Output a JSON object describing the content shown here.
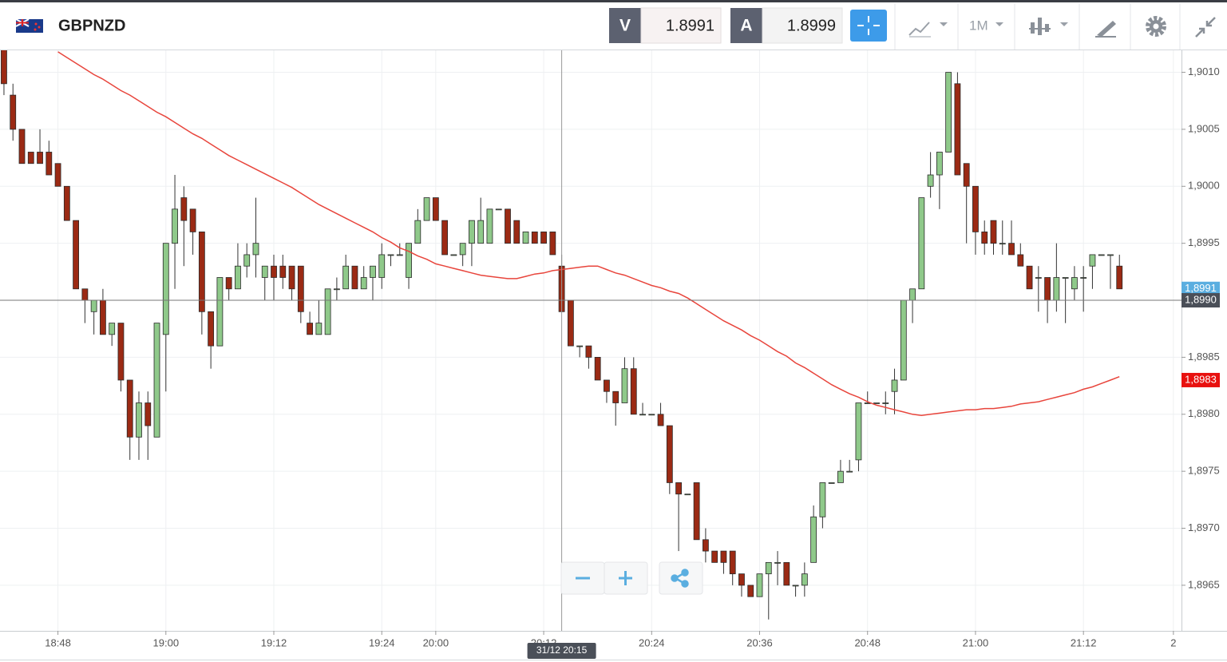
{
  "toolbar": {
    "symbol": "GBPNZD",
    "bid_label": "V",
    "bid": 1.8991,
    "ask_label": "A",
    "ask": 1.8999,
    "timeframe": "1M"
  },
  "chart_data": {
    "type": "candlestick",
    "xlim": [
      -0.44,
      130.9
    ],
    "xticks": [
      {
        "value": 6,
        "label": "18:48"
      },
      {
        "value": 18,
        "label": "19:00"
      },
      {
        "value": 30,
        "label": "19:12"
      },
      {
        "value": 42,
        "label": "19:24"
      },
      {
        "value": 48,
        "label": "20:00"
      },
      {
        "value": 60,
        "label": "20:12"
      },
      {
        "value": 72,
        "label": "20:24"
      },
      {
        "value": 84,
        "label": "20:36"
      },
      {
        "value": 96,
        "label": "20:48"
      },
      {
        "value": 108,
        "label": "21:00"
      },
      {
        "value": 120,
        "label": "21:12"
      },
      {
        "value": 130,
        "label": "2"
      }
    ],
    "ylim": [
      1.8961,
      1.9012
    ],
    "yticks": [
      {
        "value": 1.8965,
        "label": "1,8965"
      },
      {
        "value": 1.897,
        "label": "1,8970"
      },
      {
        "value": 1.8975,
        "label": "1,8975"
      },
      {
        "value": 1.898,
        "label": "1,8980"
      },
      {
        "value": 1.8985,
        "label": "1,8985"
      },
      {
        "value": 1.899,
        "label": "1,8990"
      },
      {
        "value": 1.8995,
        "label": "1,8995"
      },
      {
        "value": 1.9,
        "label": "1,9000"
      },
      {
        "value": 1.9005,
        "label": "1,9005"
      },
      {
        "value": 1.901,
        "label": "1,9010"
      }
    ],
    "grid": true,
    "up_color": "#8fc98a",
    "down_color": "#9b2a14",
    "open": [
      1.9012,
      1.9008,
      1.9005,
      1.9003,
      1.9003,
      1.9003,
      1.9002,
      1.9,
      1.8997,
      1.8991,
      1.8989,
      1.899,
      1.8987,
      1.8988,
      1.8983,
      1.8978,
      1.8981,
      1.8978,
      1.8987,
      1.8995,
      1.8999,
      1.8998,
      1.8996,
      1.8989,
      1.8986,
      1.8992,
      1.8991,
      1.8993,
      1.8994,
      1.8992,
      1.8993,
      1.8993,
      1.8993,
      1.8993,
      1.8988,
      1.8987,
      1.8987,
      1.8991,
      1.8991,
      1.8993,
      1.8991,
      1.8992,
      1.8992,
      1.8994,
      1.8994,
      1.8992,
      1.8995,
      1.8997,
      1.8999,
      1.8997,
      1.8994,
      1.8994,
      1.8995,
      1.8995,
      1.8995,
      1.8998,
      1.8998,
      1.8997,
      1.8995,
      1.8996,
      1.8996,
      1.8996,
      1.8993,
      1.899,
      1.8986,
      1.8986,
      1.8985,
      1.8983,
      1.8982,
      1.8981,
      1.8984,
      1.898,
      1.898,
      1.898,
      1.8979,
      1.8974,
      1.8973,
      1.8974,
      1.8969,
      1.8968,
      1.8968,
      1.8968,
      1.8966,
      1.8965,
      1.8964,
      1.8966,
      1.8967,
      1.8967,
      1.8965,
      1.8965,
      1.8967,
      1.8971,
      1.8974,
      1.8974,
      1.8975,
      1.8976,
      1.8981,
      1.8981,
      1.8981,
      1.8982,
      1.8983,
      1.899,
      1.8991,
      1.9,
      1.9001,
      1.9003,
      1.9009,
      1.9002,
      1.9,
      1.8996,
      1.8997,
      1.8995,
      1.8995,
      1.8994,
      1.8993,
      1.8992,
      1.8992,
      1.899,
      1.8992,
      1.8991,
      1.8992,
      1.8993,
      1.8994,
      1.8994,
      1.8993
    ],
    "high": [
      1.9012,
      1.9009,
      1.9005,
      1.9003,
      1.9005,
      1.9004,
      1.9002,
      1.9,
      1.8997,
      1.8991,
      1.899,
      1.8991,
      1.8988,
      1.8988,
      1.8983,
      1.8982,
      1.8982,
      1.8988,
      1.8995,
      1.9001,
      1.9,
      1.8998,
      1.8996,
      1.8989,
      1.8992,
      1.8992,
      1.8995,
      1.8995,
      1.8999,
      1.8993,
      1.8994,
      1.8994,
      1.8993,
      1.8993,
      1.8989,
      1.899,
      1.8991,
      1.8992,
      1.8994,
      1.8993,
      1.8993,
      1.8993,
      1.8995,
      1.8994,
      1.8995,
      1.8995,
      1.8998,
      1.8999,
      1.8999,
      1.8997,
      1.8994,
      1.8995,
      1.8997,
      1.8999,
      1.8998,
      1.8998,
      1.8998,
      1.8997,
      1.8996,
      1.8996,
      1.8996,
      1.8996,
      1.8994,
      1.899,
      1.8986,
      1.8986,
      1.8985,
      1.8983,
      1.8982,
      1.8985,
      1.8985,
      1.8981,
      1.898,
      1.8981,
      1.8979,
      1.8974,
      1.8973,
      1.8974,
      1.897,
      1.8968,
      1.8968,
      1.8968,
      1.8966,
      1.8965,
      1.8966,
      1.8967,
      1.8968,
      1.8967,
      1.8965,
      1.8967,
      1.8972,
      1.8974,
      1.8974,
      1.8976,
      1.8976,
      1.8981,
      1.8982,
      1.8981,
      1.8982,
      1.8984,
      1.899,
      1.8991,
      1.8999,
      1.9003,
      1.9003,
      1.901,
      1.901,
      1.9002,
      1.9,
      1.8997,
      1.8997,
      1.8997,
      1.8997,
      1.8995,
      1.8993,
      1.8993,
      1.8992,
      1.8995,
      1.8992,
      1.8993,
      1.8993,
      1.8994,
      1.8994,
      1.8994,
      1.8994
    ],
    "low": [
      1.9008,
      1.9004,
      1.9002,
      1.9002,
      1.9002,
      1.9001,
      1.9,
      1.8997,
      1.8991,
      1.8988,
      1.8987,
      1.8987,
      1.8986,
      1.8982,
      1.8976,
      1.8976,
      1.8976,
      1.8978,
      1.8982,
      1.8991,
      1.8993,
      1.8994,
      1.8987,
      1.8984,
      1.8986,
      1.899,
      1.8991,
      1.8992,
      1.8992,
      1.899,
      1.899,
      1.8991,
      1.899,
      1.8988,
      1.8987,
      1.8987,
      1.8987,
      1.899,
      1.8991,
      1.8991,
      1.8991,
      1.899,
      1.8991,
      1.8993,
      1.8994,
      1.8991,
      1.8995,
      1.8997,
      1.8997,
      1.8994,
      1.8994,
      1.8993,
      1.8993,
      1.8995,
      1.8995,
      1.8998,
      1.8995,
      1.8995,
      1.8995,
      1.8995,
      1.8995,
      1.8994,
      1.8989,
      1.8986,
      1.8985,
      1.8984,
      1.8983,
      1.8981,
      1.8979,
      1.8981,
      1.898,
      1.898,
      1.898,
      1.8979,
      1.8973,
      1.8968,
      1.8973,
      1.8969,
      1.8967,
      1.8967,
      1.8966,
      1.8965,
      1.8964,
      1.8964,
      1.8964,
      1.8962,
      1.8965,
      1.8965,
      1.8964,
      1.8964,
      1.8967,
      1.897,
      1.8974,
      1.8974,
      1.8975,
      1.8975,
      1.8981,
      1.8981,
      1.898,
      1.898,
      1.8983,
      1.8988,
      1.8991,
      1.8999,
      1.8998,
      1.9003,
      1.9001,
      1.8995,
      1.8994,
      1.8994,
      1.8994,
      1.8994,
      1.8994,
      1.8993,
      1.8991,
      1.8989,
      1.8988,
      1.8989,
      1.8988,
      1.899,
      1.8989,
      1.8991,
      1.8994,
      1.8991,
      1.8991
    ],
    "close": [
      1.9009,
      1.9005,
      1.9002,
      1.9002,
      1.9002,
      1.9001,
      1.9,
      1.8997,
      1.8991,
      1.899,
      1.899,
      1.8987,
      1.8988,
      1.8983,
      1.8978,
      1.8981,
      1.8979,
      1.8988,
      1.8995,
      1.8998,
      1.8997,
      1.8996,
      1.8989,
      1.8986,
      1.8992,
      1.8991,
      1.8993,
      1.8994,
      1.8995,
      1.8993,
      1.8992,
      1.8992,
      1.8991,
      1.8989,
      1.8987,
      1.8988,
      1.8991,
      1.8991,
      1.8993,
      1.8991,
      1.8992,
      1.8993,
      1.8994,
      1.8994,
      1.8994,
      1.8995,
      1.8997,
      1.8999,
      1.8997,
      1.8994,
      1.8994,
      1.8995,
      1.8997,
      1.8997,
      1.8998,
      1.8998,
      1.8995,
      1.8995,
      1.8996,
      1.8995,
      1.8995,
      1.8994,
      1.8989,
      1.8986,
      1.8986,
      1.8985,
      1.8983,
      1.8982,
      1.8981,
      1.8984,
      1.898,
      1.898,
      1.898,
      1.8979,
      1.8974,
      1.8973,
      1.8973,
      1.8969,
      1.8968,
      1.8967,
      1.8967,
      1.8966,
      1.8965,
      1.8964,
      1.8966,
      1.8967,
      1.8967,
      1.8965,
      1.8965,
      1.8966,
      1.8971,
      1.8974,
      1.8974,
      1.8975,
      1.8975,
      1.8981,
      1.8981,
      1.8981,
      1.8981,
      1.8983,
      1.899,
      1.8991,
      1.8999,
      1.9001,
      1.9003,
      1.901,
      1.9001,
      1.9,
      1.8996,
      1.8995,
      1.8995,
      1.8995,
      1.8994,
      1.8993,
      1.8991,
      1.8992,
      1.899,
      1.8992,
      1.8992,
      1.8992,
      1.8992,
      1.8994,
      1.8994,
      1.8994,
      1.8991
    ],
    "overlay": {
      "color": "#e8453c",
      "values": [
        null,
        null,
        null,
        null,
        null,
        null,
        1.90118,
        1.90113,
        1.90108,
        1.90103,
        1.90098,
        1.90094,
        1.90089,
        1.90084,
        1.9008,
        1.90075,
        1.9007,
        1.90065,
        1.90061,
        1.90056,
        1.90051,
        1.90046,
        1.90042,
        1.90037,
        1.90032,
        1.90027,
        1.90023,
        1.90019,
        1.90015,
        1.90011,
        1.90007,
        1.90003,
        1.89999,
        1.89994,
        1.89989,
        1.89984,
        1.8998,
        1.89976,
        1.89972,
        1.89968,
        1.89964,
        1.8996,
        1.89955,
        1.89951,
        1.89946,
        1.89943,
        1.89939,
        1.89936,
        1.89932,
        1.8993,
        1.89928,
        1.89926,
        1.89924,
        1.89922,
        1.89921,
        1.8992,
        1.89919,
        1.89919,
        1.89921,
        1.89923,
        1.89924,
        1.89926,
        1.89927,
        1.89928,
        1.89929,
        1.8993,
        1.8993,
        1.89927,
        1.89924,
        1.89922,
        1.89919,
        1.89916,
        1.89913,
        1.89911,
        1.89908,
        1.89906,
        1.89902,
        1.89897,
        1.89892,
        1.89887,
        1.89882,
        1.89878,
        1.89874,
        1.89869,
        1.89865,
        1.8986,
        1.89855,
        1.89851,
        1.89845,
        1.89841,
        1.89836,
        1.89831,
        1.89826,
        1.89822,
        1.89818,
        1.89815,
        1.89811,
        1.89808,
        1.89806,
        1.89804,
        1.89802,
        1.898,
        1.89799,
        1.898,
        1.89801,
        1.89802,
        1.89803,
        1.89804,
        1.89804,
        1.89805,
        1.89805,
        1.89806,
        1.89807,
        1.89809,
        1.8981,
        1.89811,
        1.89813,
        1.89815,
        1.89817,
        1.89819,
        1.89822,
        1.89824,
        1.89827,
        1.8983,
        1.89833
      ]
    },
    "price_tags": [
      {
        "value": 1.8991,
        "label": "1,8991",
        "color": "#5aaee0"
      },
      {
        "value": 1.899,
        "label": "1,8990",
        "color": "#4a4f58"
      },
      {
        "value": 1.8983,
        "label": "1,8983",
        "color": "#e8110f"
      }
    ],
    "crosshair": {
      "x": 62,
      "y": 1.899,
      "date_label": "31/12 20:15"
    }
  }
}
